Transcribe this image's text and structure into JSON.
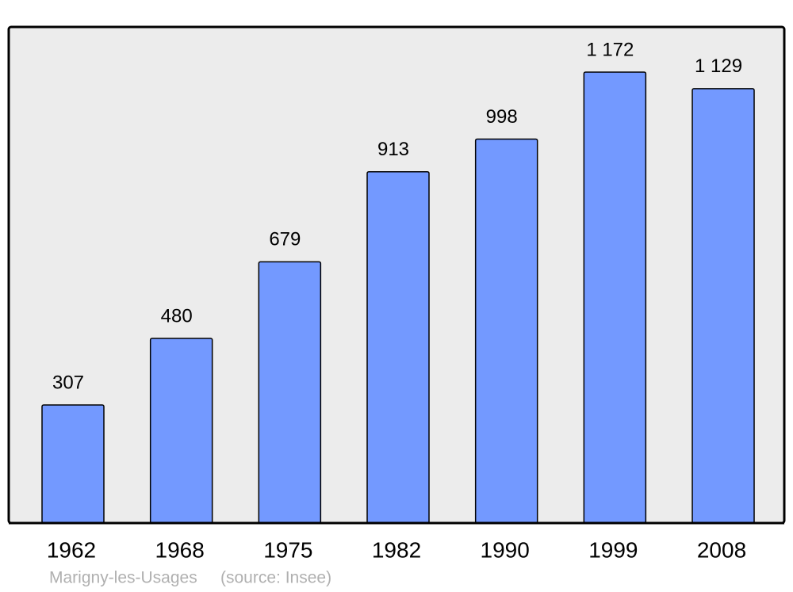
{
  "chart_data": {
    "type": "bar",
    "title": "Marigny-les-Usages",
    "source": "(source: Insee)",
    "categories": [
      "1962",
      "1968",
      "1975",
      "1982",
      "1990",
      "1999",
      "2008"
    ],
    "values": [
      307,
      480,
      679,
      913,
      998,
      1172,
      1129
    ],
    "value_labels": [
      "307",
      "480",
      "679",
      "913",
      "998",
      "1 172",
      "1 129"
    ],
    "color": "#7399ff"
  }
}
